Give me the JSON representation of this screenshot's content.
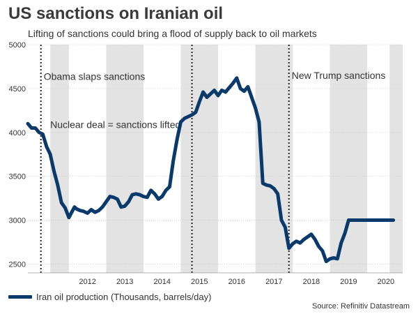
{
  "title": "US sanctions on Iranian oil",
  "subtitle": "Lifting of sanctions could bring a flood of supply back to oil markets",
  "legend_label": "Iran oil production (Thousands, barrels/day)",
  "source": "Source: Refinitiv Datastream",
  "colors": {
    "line": "#0a3a6b",
    "band": "#e3e3e3",
    "grid": "#cccccc",
    "vline": "#222222"
  },
  "chart_data": {
    "type": "line",
    "title": "US sanctions on Iranian oil",
    "subtitle": "Lifting of sanctions could bring a flood of supply back to oil markets",
    "xlabel": "",
    "ylabel": "",
    "xlim": [
      2010.9,
      2020.95
    ],
    "ylim": [
      2400,
      5000
    ],
    "y_ticks": [
      2500,
      3000,
      3500,
      4000,
      4500,
      5000
    ],
    "x_tick_labels": [
      "2012",
      "2013",
      "2014",
      "2015",
      "2016",
      "2017",
      "2018",
      "2019",
      "2020"
    ],
    "x_tick_positions": [
      2012.5,
      2013.5,
      2014.5,
      2015.5,
      2016.5,
      2017.5,
      2018.5,
      2019.5,
      2020.5
    ],
    "shaded_years": [
      [
        2011.5,
        2012
      ],
      [
        2013,
        2014
      ],
      [
        2015,
        2016
      ],
      [
        2017,
        2018
      ],
      [
        2019,
        2020
      ],
      [
        2020.6,
        2020.95
      ]
    ],
    "grid": true,
    "legend_position": "bottom-left",
    "events": [
      {
        "x": 2011.25,
        "label": "Obama slaps sanctions",
        "label_y": 4600,
        "label_side": "right"
      },
      {
        "x": 2015.3,
        "label": "Nuclear deal = sanctions lifted",
        "label_y": 4050,
        "label_side": "left"
      },
      {
        "x": 2017.9,
        "label": "New Trump sanctions",
        "label_y": 4610,
        "label_side": "right"
      }
    ],
    "series": [
      {
        "name": "Iran oil production (Thousands, barrels/day)",
        "x": [
          2010.9,
          2011.0,
          2011.1,
          2011.2,
          2011.3,
          2011.4,
          2011.5,
          2011.6,
          2011.7,
          2011.8,
          2011.9,
          2012.0,
          2012.1,
          2012.15,
          2012.2,
          2012.3,
          2012.4,
          2012.5,
          2012.6,
          2012.7,
          2012.8,
          2012.9,
          2013.0,
          2013.1,
          2013.2,
          2013.3,
          2013.4,
          2013.5,
          2013.6,
          2013.7,
          2013.8,
          2013.9,
          2014.0,
          2014.1,
          2014.2,
          2014.3,
          2014.4,
          2014.5,
          2014.6,
          2014.7,
          2014.8,
          2014.9,
          2015.0,
          2015.1,
          2015.2,
          2015.3,
          2015.4,
          2015.5,
          2015.6,
          2015.7,
          2015.8,
          2015.9,
          2016.0,
          2016.1,
          2016.2,
          2016.3,
          2016.4,
          2016.5,
          2016.6,
          2016.7,
          2016.8,
          2016.9,
          2017.0,
          2017.1,
          2017.2,
          2017.3,
          2017.4,
          2017.5,
          2017.6,
          2017.7,
          2017.8,
          2017.9,
          2018.0,
          2018.1,
          2018.2,
          2018.3,
          2018.4,
          2018.5,
          2018.6,
          2018.7,
          2018.8,
          2018.9,
          2019.0,
          2019.1,
          2019.2,
          2019.3,
          2019.4,
          2019.5,
          2019.6,
          2019.7,
          2019.8,
          2019.9,
          2020.0,
          2020.1,
          2020.2,
          2020.3,
          2020.4,
          2020.5,
          2020.6,
          2020.7
        ],
        "values": [
          4100,
          4050,
          4050,
          4000,
          3980,
          3840,
          3750,
          3560,
          3400,
          3200,
          3140,
          3030,
          3110,
          3150,
          3130,
          3110,
          3100,
          3080,
          3120,
          3090,
          3110,
          3150,
          3210,
          3270,
          3260,
          3240,
          3150,
          3160,
          3210,
          3290,
          3300,
          3290,
          3270,
          3260,
          3340,
          3300,
          3240,
          3270,
          3340,
          3380,
          3680,
          3920,
          4120,
          4160,
          4180,
          4200,
          4230,
          4350,
          4460,
          4400,
          4440,
          4480,
          4420,
          4480,
          4460,
          4510,
          4560,
          4620,
          4500,
          4470,
          4520,
          4400,
          4280,
          4120,
          3420,
          3400,
          3390,
          3360,
          3300,
          3000,
          2920,
          2680,
          2730,
          2760,
          2740,
          2780,
          2810,
          2840,
          2780,
          2700,
          2650,
          2530,
          2560,
          2570,
          2560,
          2740,
          2850,
          3000,
          3000,
          3000,
          3000,
          3000,
          3000,
          3000,
          3000,
          3000,
          3000,
          3000,
          3000,
          3000
        ]
      }
    ]
  }
}
